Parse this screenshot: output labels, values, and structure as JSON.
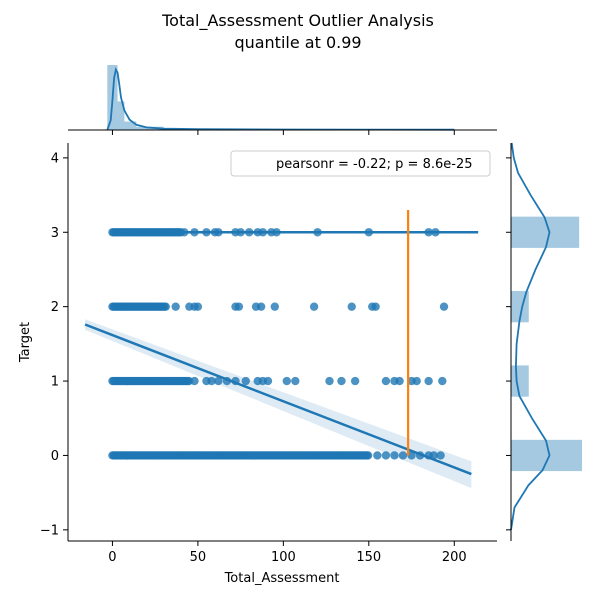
{
  "chart_data": {
    "type": "scatter",
    "title": "Total_Assessment Outlier Analysis",
    "subtitle": "quantile at 0.99",
    "xlabel": "Total_Assessment",
    "ylabel": "Target",
    "xlim": [
      -26,
      225
    ],
    "ylim": [
      -1.15,
      4.2
    ],
    "x_ticks": [
      "0",
      "50",
      "100",
      "150",
      "200"
    ],
    "y_ticks": [
      "−1",
      "0",
      "1",
      "2",
      "3",
      "4"
    ],
    "legend": {
      "text": "pearsonr = -0.22; p = 8.6e-25",
      "position": "top-right"
    },
    "grid": false,
    "colors": {
      "main": "#1f77b4",
      "highlight": "#ff7f0e"
    },
    "series": [
      {
        "y": 0,
        "dense_max": 150,
        "x": [
          155,
          160,
          165,
          170,
          175,
          180,
          185,
          188,
          192
        ]
      },
      {
        "y": 1,
        "dense_max": 45,
        "x": [
          48,
          55,
          58,
          62,
          67,
          72,
          78,
          85,
          88,
          91,
          102,
          107,
          127,
          134,
          142,
          160,
          165,
          168,
          175,
          178,
          185,
          193
        ]
      },
      {
        "y": 2,
        "dense_max": 32,
        "x": [
          37,
          45,
          48,
          50,
          72,
          74,
          84,
          87,
          95,
          118,
          140,
          152,
          154,
          194
        ]
      },
      {
        "y": 3,
        "dense_max": 40,
        "x": [
          42,
          48,
          55,
          60,
          62,
          72,
          75,
          80,
          85,
          88,
          93,
          96,
          120,
          150,
          185,
          189
        ]
      }
    ],
    "regression": {
      "x": [
        -16,
        210
      ],
      "y": [
        1.76,
        -0.25
      ],
      "ci_upper": [
        1.83,
        -0.08
      ],
      "ci_lower": [
        1.69,
        -0.44
      ]
    },
    "flat_line": {
      "x": [
        0,
        214
      ],
      "y": [
        3,
        3
      ]
    },
    "quantile_line": {
      "x": 173,
      "y": [
        0,
        3.3
      ]
    },
    "top_marginal": {
      "hist": [
        {
          "x0": -3,
          "x1": 3,
          "density": 1.0
        },
        {
          "x0": 3,
          "x1": 7,
          "density": 0.44
        },
        {
          "x0": 7,
          "x1": 14,
          "density": 0.13
        },
        {
          "x0": 14,
          "x1": 30,
          "density": 0.05
        },
        {
          "x0": 30,
          "x1": 200,
          "density": 0.01
        }
      ],
      "kde": {
        "x": [
          -3,
          -1,
          0,
          1,
          2,
          3,
          4,
          5,
          7,
          10,
          14,
          20,
          30,
          50,
          100,
          150,
          200
        ],
        "y": [
          0.0,
          0.15,
          0.45,
          0.8,
          0.93,
          0.88,
          0.7,
          0.5,
          0.3,
          0.16,
          0.08,
          0.04,
          0.02,
          0.012,
          0.008,
          0.006,
          0.005
        ]
      },
      "x_ticks": [
        0,
        50,
        100,
        150,
        200
      ]
    },
    "right_marginal": {
      "hist": [
        {
          "y": 0,
          "height": 0.42,
          "density": 1.0
        },
        {
          "y": 1,
          "height": 0.42,
          "density": 0.25
        },
        {
          "y": 2,
          "height": 0.42,
          "density": 0.25
        },
        {
          "y": 3,
          "height": 0.42,
          "density": 0.96
        }
      ],
      "kde": {
        "y": [
          -1.0,
          -0.7,
          -0.4,
          -0.2,
          0.0,
          0.2,
          0.5,
          0.8,
          1.0,
          1.2,
          1.5,
          1.8,
          2.0,
          2.2,
          2.5,
          2.8,
          3.0,
          3.2,
          3.5,
          3.8,
          4.0,
          4.2
        ],
        "v": [
          0.0,
          0.05,
          0.25,
          0.45,
          0.55,
          0.5,
          0.3,
          0.12,
          0.08,
          0.07,
          0.08,
          0.12,
          0.16,
          0.22,
          0.35,
          0.5,
          0.55,
          0.48,
          0.28,
          0.1,
          0.04,
          0.01
        ]
      }
    }
  }
}
